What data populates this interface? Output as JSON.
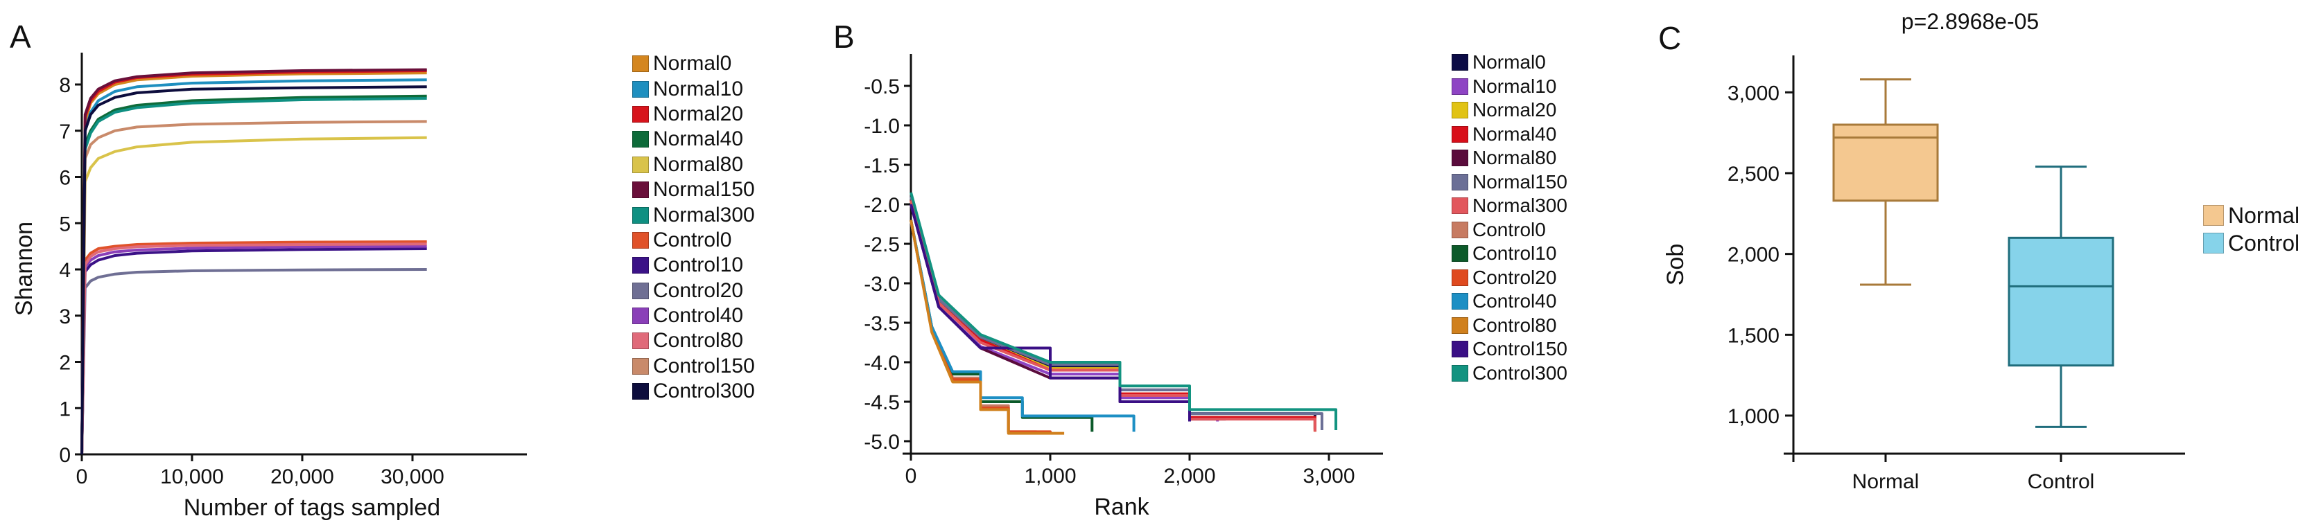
{
  "panels": {
    "A": {
      "letter": "A"
    },
    "B": {
      "letter": "B"
    },
    "C": {
      "letter": "C"
    }
  },
  "chart_data": [
    {
      "id": "A",
      "type": "line",
      "title": "",
      "xlabel": "Number of tags sampled",
      "ylabel": "Shannon",
      "xlim": [
        0,
        35000
      ],
      "ylim": [
        0,
        8.6
      ],
      "x_ticks": [
        "0",
        "10,000",
        "20,000",
        "30,000"
      ],
      "x_tick_values": [
        0,
        10000,
        20000,
        30000
      ],
      "y_ticks": [
        "0",
        "1",
        "2",
        "3",
        "4",
        "5",
        "6",
        "7",
        "8"
      ],
      "y_tick_values": [
        0,
        1,
        2,
        3,
        4,
        5,
        6,
        7,
        8
      ],
      "grid": false,
      "legend_position": "right",
      "x": [
        0,
        300,
        800,
        1500,
        3000,
        5000,
        10000,
        20000,
        31300
      ],
      "series": [
        {
          "name": "Normal0",
          "color": "#d4861f",
          "plateau": 8.25,
          "values": [
            0,
            7.2,
            7.6,
            7.8,
            8.0,
            8.1,
            8.18,
            8.23,
            8.25
          ]
        },
        {
          "name": "Normal10",
          "color": "#1f8fbf",
          "plateau": 8.1,
          "values": [
            0,
            7.0,
            7.4,
            7.65,
            7.85,
            7.95,
            8.03,
            8.08,
            8.1
          ]
        },
        {
          "name": "Normal20",
          "color": "#d7141c",
          "plateau": 8.3,
          "values": [
            0,
            7.3,
            7.65,
            7.85,
            8.05,
            8.15,
            8.22,
            8.27,
            8.3
          ]
        },
        {
          "name": "Normal40",
          "color": "#0e6b3a",
          "plateau": 7.75,
          "values": [
            0,
            6.7,
            7.0,
            7.25,
            7.45,
            7.55,
            7.65,
            7.72,
            7.75
          ]
        },
        {
          "name": "Normal80",
          "color": "#d9c34a",
          "plateau": 6.85,
          "values": [
            0,
            5.9,
            6.2,
            6.4,
            6.55,
            6.65,
            6.75,
            6.82,
            6.85
          ]
        },
        {
          "name": "Normal150",
          "color": "#6a0f3a",
          "plateau": 8.32,
          "values": [
            0,
            7.35,
            7.7,
            7.9,
            8.08,
            8.17,
            8.25,
            8.3,
            8.32
          ]
        },
        {
          "name": "Normal300",
          "color": "#0f9082",
          "plateau": 7.7,
          "values": [
            0,
            6.6,
            6.95,
            7.2,
            7.4,
            7.5,
            7.6,
            7.67,
            7.7
          ]
        },
        {
          "name": "Control0",
          "color": "#e0522a",
          "plateau": 4.6,
          "values": [
            0,
            4.2,
            4.35,
            4.45,
            4.5,
            4.54,
            4.57,
            4.59,
            4.6
          ]
        },
        {
          "name": "Control10",
          "color": "#3b1287",
          "plateau": 4.45,
          "values": [
            0,
            3.95,
            4.1,
            4.2,
            4.3,
            4.35,
            4.4,
            4.43,
            4.45
          ]
        },
        {
          "name": "Control20",
          "color": "#6f6f94",
          "plateau": 4.0,
          "values": [
            0,
            3.6,
            3.75,
            3.83,
            3.9,
            3.94,
            3.97,
            3.99,
            4.0
          ]
        },
        {
          "name": "Control40",
          "color": "#8a3fb8",
          "plateau": 4.5,
          "values": [
            0,
            4.05,
            4.2,
            4.3,
            4.38,
            4.42,
            4.46,
            4.49,
            4.5
          ]
        },
        {
          "name": "Control80",
          "color": "#e06a7a",
          "plateau": 4.55,
          "values": [
            0,
            4.1,
            4.28,
            4.38,
            4.45,
            4.49,
            4.52,
            4.54,
            4.55
          ]
        },
        {
          "name": "Control150",
          "color": "#c98a6a",
          "plateau": 7.2,
          "values": [
            0,
            6.4,
            6.7,
            6.85,
            7.0,
            7.08,
            7.14,
            7.18,
            7.2
          ]
        },
        {
          "name": "Control300",
          "color": "#0d0d3d",
          "plateau": 7.95,
          "values": [
            0,
            7.0,
            7.35,
            7.55,
            7.72,
            7.82,
            7.9,
            7.93,
            7.95
          ]
        }
      ]
    },
    {
      "id": "B",
      "type": "line",
      "title": "",
      "xlabel": "Rank",
      "ylabel": "",
      "xlim": [
        0,
        3200
      ],
      "ylim": [
        -5.15,
        -0.2
      ],
      "x_ticks": [
        "0",
        "1,000",
        "2,000",
        "3,000"
      ],
      "x_tick_values": [
        0,
        1000,
        2000,
        3000
      ],
      "y_ticks": [
        "-0.5",
        "-1.0",
        "-1.5",
        "-2.0",
        "-2.5",
        "-3.0",
        "-3.5",
        "-4.0",
        "-4.5",
        "-5.0"
      ],
      "y_tick_values": [
        -0.5,
        -1.0,
        -1.5,
        -2.0,
        -2.5,
        -3.0,
        -3.5,
        -4.0,
        -4.5,
        -5.0
      ],
      "grid": false,
      "legend_position": "right",
      "series": [
        {
          "name": "Normal0",
          "color": "#0b0b45",
          "x": [
            0,
            200,
            500,
            1000,
            1500,
            2000,
            2900
          ],
          "values": [
            -1.9,
            -3.2,
            -3.7,
            -4.05,
            -4.35,
            -4.65,
            -4.85
          ]
        },
        {
          "name": "Normal10",
          "color": "#8e44c4",
          "x": [
            0,
            200,
            500,
            1000,
            1500,
            2000,
            2200
          ],
          "values": [
            -2.0,
            -3.3,
            -3.8,
            -4.15,
            -4.45,
            -4.7,
            -4.75
          ]
        },
        {
          "name": "Normal20",
          "color": "#e1c315",
          "x": [
            0,
            200,
            500,
            1000,
            1500,
            2000,
            2900
          ],
          "values": [
            -1.95,
            -3.25,
            -3.72,
            -4.08,
            -4.4,
            -4.7,
            -4.88
          ]
        },
        {
          "name": "Normal40",
          "color": "#d80f1a",
          "x": [
            0,
            200,
            500,
            1000,
            1500,
            2000,
            2900
          ],
          "values": [
            -1.95,
            -3.25,
            -3.72,
            -4.1,
            -4.4,
            -4.7,
            -4.87
          ]
        },
        {
          "name": "Normal80",
          "color": "#5a0b3c",
          "x": [
            0,
            200,
            500,
            1000,
            1500,
            2000,
            2260
          ],
          "values": [
            -2.0,
            -3.3,
            -3.82,
            -4.2,
            -4.5,
            -4.72,
            -4.72
          ]
        },
        {
          "name": "Normal150",
          "color": "#6b6f96",
          "x": [
            0,
            200,
            500,
            1000,
            1500,
            2000,
            2950
          ],
          "values": [
            -1.9,
            -3.2,
            -3.68,
            -4.03,
            -4.35,
            -4.65,
            -4.86
          ]
        },
        {
          "name": "Normal300",
          "color": "#e2575d",
          "x": [
            0,
            200,
            500,
            1000,
            1500,
            2000,
            2900
          ],
          "values": [
            -1.95,
            -3.25,
            -3.75,
            -4.1,
            -4.42,
            -4.72,
            -4.88
          ]
        },
        {
          "name": "Control0",
          "color": "#c77b62",
          "x": [
            0,
            150,
            300,
            500,
            700,
            900
          ],
          "values": [
            -2.2,
            -3.6,
            -4.2,
            -4.55,
            -4.88,
            -4.9
          ]
        },
        {
          "name": "Control10",
          "color": "#0c5a2a",
          "x": [
            0,
            150,
            300,
            500,
            800,
            1300
          ],
          "values": [
            -2.2,
            -3.55,
            -4.15,
            -4.5,
            -4.7,
            -4.88
          ]
        },
        {
          "name": "Control20",
          "color": "#df4a1f",
          "x": [
            0,
            150,
            300,
            500,
            700,
            1000
          ],
          "values": [
            -2.2,
            -3.6,
            -4.22,
            -4.58,
            -4.88,
            -4.9
          ]
        },
        {
          "name": "Control40",
          "color": "#1d8fc4",
          "x": [
            0,
            150,
            300,
            500,
            800,
            1600
          ],
          "values": [
            -2.2,
            -3.55,
            -4.12,
            -4.45,
            -4.68,
            -4.88
          ]
        },
        {
          "name": "Control80",
          "color": "#d0801d",
          "x": [
            0,
            150,
            300,
            500,
            700,
            1100
          ],
          "values": [
            -2.2,
            -3.62,
            -4.25,
            -4.6,
            -4.9,
            -4.9
          ]
        },
        {
          "name": "Control150",
          "color": "#3a0f85",
          "x": [
            0,
            200,
            500,
            1000,
            1500,
            2000
          ],
          "values": [
            -2.0,
            -3.3,
            -3.82,
            -4.2,
            -4.5,
            -4.75
          ]
        },
        {
          "name": "Control300",
          "color": "#129380",
          "x": [
            0,
            200,
            500,
            1000,
            1500,
            2000,
            3050
          ],
          "values": [
            -1.85,
            -3.15,
            -3.65,
            -4.0,
            -4.3,
            -4.6,
            -4.86
          ]
        }
      ]
    },
    {
      "id": "C",
      "type": "box",
      "title": "p=2.8968e-05",
      "xlabel": "",
      "ylabel": "Sob",
      "ylim": [
        775,
        3200
      ],
      "y_ticks": [
        "1,000",
        "1,500",
        "2,000",
        "2,500",
        "3,000"
      ],
      "y_tick_values": [
        1000,
        1500,
        2000,
        2500,
        3000
      ],
      "categories": [
        "Normal",
        "Control"
      ],
      "grid": false,
      "legend_position": "right",
      "series": [
        {
          "name": "Normal",
          "color": "#f4c890",
          "edge": "#a87a3a",
          "min": 1810,
          "q1": 2330,
          "median": 2720,
          "q3": 2800,
          "max": 3080
        },
        {
          "name": "Control",
          "color": "#86d3ea",
          "edge": "#1f6d7c",
          "min": 930,
          "q1": 1310,
          "median": 1800,
          "q3": 2100,
          "max": 2540
        }
      ]
    }
  ]
}
